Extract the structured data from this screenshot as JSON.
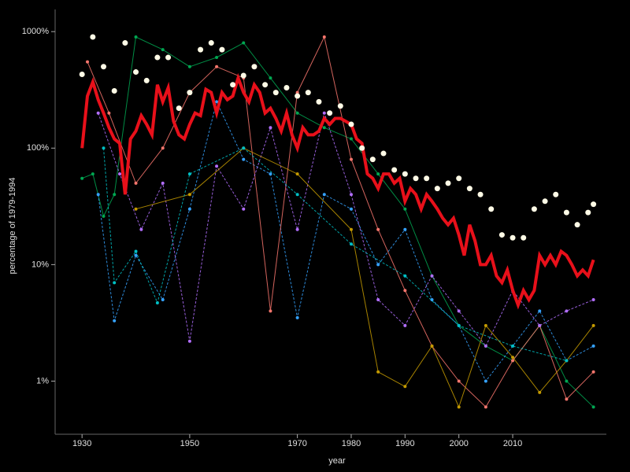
{
  "chart_data": {
    "type": "line",
    "x_label": "year",
    "y_label": "percentage of 1979-1994",
    "log_y": true,
    "xlim": [
      1925,
      2027.4
    ],
    "ylim": [
      0.35,
      1550
    ],
    "xticks": [
      1930,
      1950,
      1970,
      1980,
      1990,
      2000,
      2010
    ],
    "yticks": [
      {
        "value": 1,
        "label": "1%"
      },
      {
        "value": 10,
        "label": "10%"
      },
      {
        "value": 100,
        "label": "100%"
      },
      {
        "value": 1000,
        "label": "1000%"
      }
    ],
    "series": [
      {
        "color": "#00a651",
        "mode": "lines+markers",
        "x": [
          1930,
          1932,
          1934,
          1936,
          1940,
          1945,
          1950,
          1955,
          1960,
          1965,
          1970,
          1975,
          1980,
          1985,
          1990,
          1995,
          2000,
          2005,
          2010,
          2015,
          2020,
          2025
        ],
        "values": [
          55,
          60,
          26,
          40,
          900,
          700,
          500,
          600,
          800,
          400,
          200,
          150,
          120,
          60,
          30,
          8,
          3,
          2,
          1.5,
          3,
          1,
          0.6
        ]
      },
      {
        "color": "#35a2ff",
        "mode": "lines+markers",
        "x": [
          1933,
          1936,
          1940,
          1945,
          1950,
          1955,
          1960,
          1965,
          1970,
          1975,
          1980,
          1985,
          1990,
          1995,
          2000,
          2005,
          2010,
          2015,
          2020,
          2025
        ],
        "values": [
          40,
          3.3,
          12,
          5,
          30,
          250,
          80,
          60,
          3.5,
          40,
          30,
          10,
          20,
          5,
          3,
          1,
          2,
          4,
          1.5,
          2
        ]
      },
      {
        "color": "#f8766d",
        "mode": "lines+markers",
        "x": [
          1931,
          1935,
          1940,
          1945,
          1950,
          1955,
          1960,
          1965,
          1970,
          1975,
          1980,
          1985,
          1990,
          1995,
          2000,
          2005,
          2010,
          2015,
          2020,
          2025
        ],
        "values": [
          550,
          200,
          50,
          100,
          300,
          500,
          400,
          4,
          300,
          900,
          80,
          20,
          6,
          2,
          1,
          0.6,
          1.5,
          3,
          0.7,
          1.2
        ]
      },
      {
        "color": "#b26eff",
        "mode": "lines+markers",
        "x": [
          1933,
          1937,
          1941,
          1945,
          1950,
          1955,
          1960,
          1965,
          1970,
          1975,
          1980,
          1985,
          1990,
          1995,
          2000,
          2005,
          2010,
          2015,
          2020,
          2025
        ],
        "values": [
          200,
          60,
          20,
          50,
          2.2,
          70,
          30,
          150,
          20,
          200,
          40,
          5,
          3,
          8,
          4,
          2,
          6,
          3,
          4,
          5
        ]
      },
      {
        "color": "#c49a00",
        "mode": "lines+markers",
        "x": [
          1940,
          1950,
          1960,
          1970,
          1980,
          1985,
          1990,
          1995,
          2000,
          2005,
          2010,
          2015,
          2020,
          2025
        ],
        "values": [
          30,
          40,
          100,
          60,
          20,
          1.2,
          0.9,
          2,
          0.6,
          3,
          1.6,
          0.8,
          1.5,
          3
        ]
      },
      {
        "color": "#00bfc4",
        "mode": "lines+markers",
        "x": [
          1934,
          1936,
          1940,
          1944,
          1950,
          1960,
          1970,
          1980,
          1990,
          2000,
          2010,
          2020
        ],
        "values": [
          100,
          7,
          13,
          4.7,
          60,
          100,
          40,
          15,
          8,
          3,
          2,
          1.5
        ]
      },
      {
        "color": "#e8101a",
        "mode": "lines",
        "x": [
          1930,
          1931,
          1932,
          1933,
          1934,
          1935,
          1936,
          1937,
          1938,
          1939,
          1940,
          1941,
          1942,
          1943,
          1944,
          1945,
          1946,
          1947,
          1948,
          1949,
          1950,
          1951,
          1952,
          1953,
          1954,
          1955,
          1956,
          1957,
          1958,
          1959,
          1960,
          1961,
          1962,
          1963,
          1964,
          1965,
          1966,
          1967,
          1968,
          1969,
          1970,
          1971,
          1972,
          1973,
          1974,
          1975,
          1976,
          1977,
          1978,
          1979,
          1980,
          1981,
          1982,
          1983,
          1984,
          1985,
          1986,
          1987,
          1988,
          1989,
          1990,
          1991,
          1992,
          1993,
          1994,
          1995,
          1996,
          1997,
          1998,
          1999,
          2000,
          2001,
          2002,
          2003,
          2004,
          2005,
          2006,
          2007,
          2008,
          2009,
          2010,
          2011,
          2012,
          2013,
          2014,
          2015,
          2016,
          2017,
          2018,
          2019,
          2020,
          2021,
          2022,
          2023,
          2024,
          2025
        ],
        "values": [
          100,
          280,
          370,
          260,
          200,
          150,
          120,
          110,
          40,
          120,
          140,
          190,
          160,
          130,
          350,
          250,
          330,
          170,
          130,
          120,
          160,
          200,
          190,
          320,
          300,
          200,
          300,
          260,
          280,
          400,
          300,
          250,
          350,
          300,
          200,
          220,
          180,
          140,
          200,
          130,
          100,
          150,
          130,
          130,
          140,
          180,
          160,
          180,
          180,
          170,
          160,
          120,
          110,
          60,
          55,
          45,
          60,
          60,
          50,
          55,
          35,
          45,
          40,
          30,
          40,
          35,
          30,
          25,
          22,
          25,
          18,
          12,
          22,
          16,
          10,
          10,
          12,
          8,
          7,
          9,
          6,
          4.5,
          6,
          5,
          6,
          12,
          10,
          12,
          10,
          13,
          12,
          10,
          8,
          9,
          8,
          11
        ]
      },
      {
        "color": "#fffbe6",
        "mode": "markers",
        "x": [
          1930,
          1932,
          1934,
          1936,
          1938,
          1940,
          1942,
          1944,
          1946,
          1948,
          1950,
          1952,
          1954,
          1956,
          1958,
          1960,
          1962,
          1964,
          1966,
          1968,
          1970,
          1972,
          1974,
          1976,
          1978,
          1980,
          1982,
          1984,
          1986,
          1988,
          1990,
          1992,
          1994,
          1996,
          1998,
          2000,
          2002,
          2004,
          2006,
          2008,
          2010,
          2012,
          2014,
          2016,
          2018,
          2020,
          2022,
          2024,
          2025
        ],
        "values": [
          430,
          900,
          500,
          310,
          800,
          450,
          380,
          600,
          600,
          220,
          300,
          700,
          800,
          700,
          350,
          420,
          500,
          350,
          300,
          330,
          280,
          300,
          250,
          200,
          230,
          160,
          100,
          80,
          90,
          65,
          60,
          55,
          55,
          45,
          50,
          55,
          45,
          40,
          30,
          18,
          17,
          17,
          30,
          35,
          40,
          28,
          22,
          28,
          33
        ]
      }
    ]
  }
}
